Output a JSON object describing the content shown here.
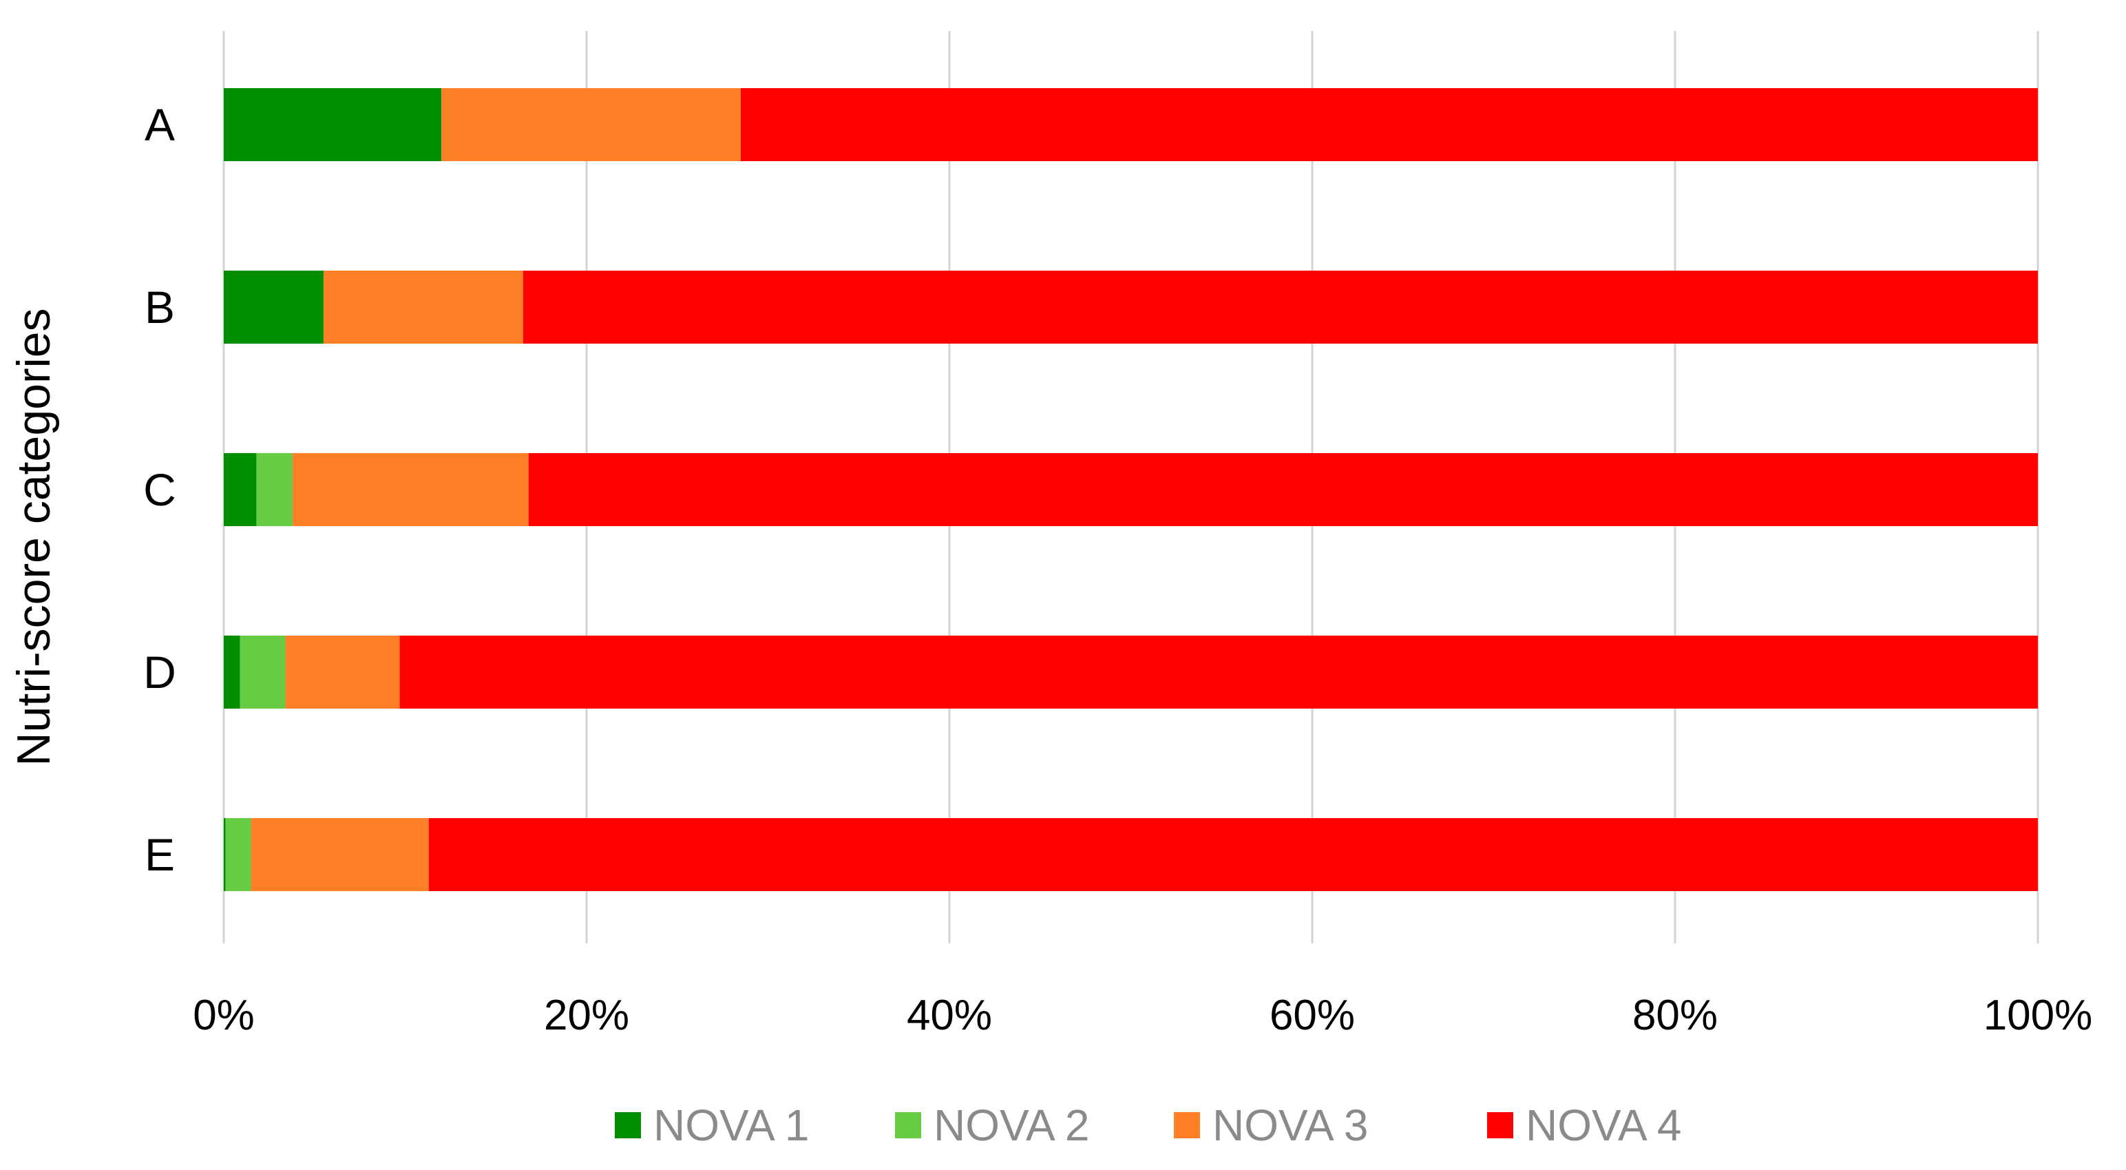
{
  "chart_data": {
    "type": "bar",
    "orientation": "horizontal",
    "stacked": true,
    "percent_stacked": true,
    "categories": [
      "A",
      "B",
      "C",
      "D",
      "E"
    ],
    "series": [
      {
        "name": "NOVA 1",
        "color": "#008f00",
        "values": [
          12,
          5.5,
          1.8,
          0.9,
          0.1
        ]
      },
      {
        "name": "NOVA 2",
        "color": "#66cc44",
        "values": [
          0,
          0,
          2.0,
          2.5,
          1.4
        ]
      },
      {
        "name": "NOVA 3",
        "color": "#ff7f27",
        "values": [
          16.5,
          11.0,
          13.0,
          6.3,
          9.8
        ]
      },
      {
        "name": "NOVA 4",
        "color": "#ff0000",
        "values": [
          71.5,
          83.5,
          83.2,
          90.3,
          88.7
        ]
      }
    ],
    "xlabel": "",
    "ylabel": "Nutri-score categories",
    "xlim": [
      0,
      100
    ],
    "x_ticks": [
      "0%",
      "20%",
      "40%",
      "60%",
      "80%",
      "100%"
    ],
    "grid": "vertical",
    "legend_position": "bottom"
  }
}
